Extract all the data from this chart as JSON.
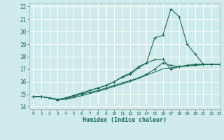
{
  "xlabel": "Humidex (Indice chaleur)",
  "bg_color": "#ceeaea",
  "line_color": "#1a6b5a",
  "xlim": [
    -0.5,
    23
  ],
  "ylim": [
    13.8,
    22.3
  ],
  "yticks": [
    14,
    15,
    16,
    17,
    18,
    19,
    20,
    21,
    22
  ],
  "xticks": [
    0,
    1,
    2,
    3,
    4,
    5,
    6,
    7,
    8,
    9,
    10,
    11,
    12,
    13,
    14,
    15,
    16,
    17,
    18,
    19,
    20,
    21,
    22,
    23
  ],
  "series1_x": [
    0,
    1,
    2,
    3,
    4,
    5,
    6,
    7,
    8,
    9,
    10,
    11,
    12,
    13,
    14,
    15,
    16,
    17,
    18,
    19,
    20,
    21,
    22,
    23
  ],
  "series1_y": [
    14.8,
    14.8,
    14.7,
    14.6,
    14.65,
    14.8,
    15.0,
    15.15,
    15.3,
    15.5,
    15.7,
    15.9,
    16.1,
    16.3,
    16.6,
    17.0,
    17.5,
    17.3,
    17.2,
    17.3,
    17.35,
    17.4,
    17.4,
    17.4
  ],
  "series2_x": [
    0,
    1,
    2,
    3,
    4,
    5,
    6,
    7,
    8,
    9,
    10,
    11,
    12,
    13,
    14,
    15,
    16,
    17,
    18,
    19,
    20,
    21,
    22,
    23
  ],
  "series2_y": [
    14.8,
    14.8,
    14.7,
    14.55,
    14.7,
    14.9,
    15.1,
    15.3,
    15.5,
    15.7,
    16.0,
    16.4,
    16.7,
    17.2,
    17.5,
    19.5,
    19.7,
    21.8,
    21.2,
    19.0,
    18.2,
    17.4,
    17.4,
    17.4
  ],
  "series3_x": [
    0,
    1,
    2,
    3,
    4,
    5,
    6,
    7,
    8,
    9,
    10,
    11,
    12,
    13,
    14,
    15,
    16,
    17,
    18,
    19,
    20,
    21,
    22,
    23
  ],
  "series3_y": [
    14.8,
    14.8,
    14.7,
    14.55,
    14.7,
    14.9,
    15.1,
    15.3,
    15.5,
    15.7,
    16.0,
    16.35,
    16.6,
    17.1,
    17.5,
    17.75,
    17.8,
    17.0,
    17.2,
    17.3,
    17.4,
    17.4,
    17.4,
    17.4
  ],
  "series4_x": [
    0,
    1,
    2,
    3,
    4,
    5,
    6,
    7,
    8,
    9,
    10,
    11,
    12,
    13,
    14,
    15,
    16,
    17,
    18,
    19,
    20,
    21,
    22,
    23
  ],
  "series4_y": [
    14.8,
    14.8,
    14.7,
    14.55,
    14.6,
    14.72,
    14.88,
    15.05,
    15.22,
    15.42,
    15.62,
    15.82,
    16.02,
    16.27,
    16.52,
    16.77,
    17.02,
    17.1,
    17.18,
    17.25,
    17.3,
    17.35,
    17.37,
    17.38
  ]
}
